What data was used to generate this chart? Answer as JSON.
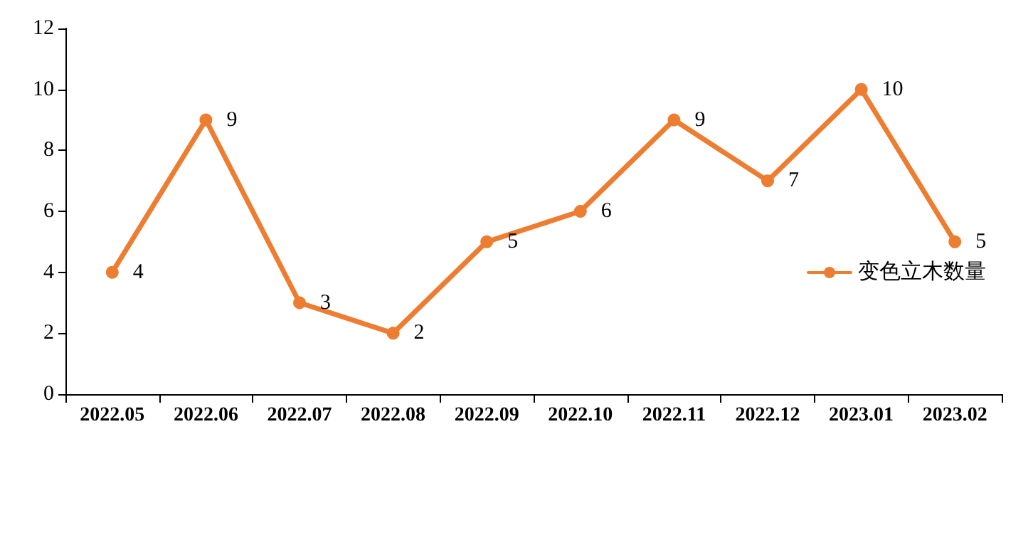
{
  "chart_data": {
    "type": "line",
    "categories": [
      "2022.05",
      "2022.06",
      "2022.07",
      "2022.08",
      "2022.09",
      "2022.10",
      "2022.11",
      "2022.12",
      "2023.01",
      "2023.02"
    ],
    "series": [
      {
        "name": "变色立木数量",
        "color": "#ed7d31",
        "values": [
          4,
          9,
          3,
          2,
          5,
          6,
          9,
          7,
          10,
          5
        ]
      }
    ],
    "ylim": [
      0,
      12
    ],
    "yticks": [
      0,
      2,
      4,
      6,
      8,
      10,
      12
    ],
    "grid": false,
    "legend": "right",
    "marker": "circle",
    "line_style": "solid",
    "data_labels": true
  }
}
